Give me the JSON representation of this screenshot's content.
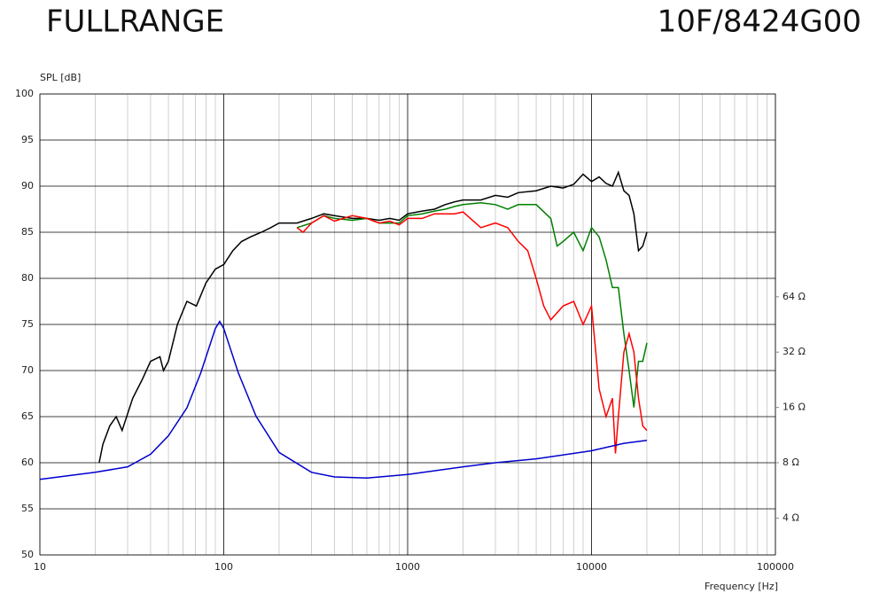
{
  "chart_data": {
    "type": "line",
    "title": "FULLRANGE",
    "subtitle": "10F/8424G00",
    "y_label": "SPL [dB]",
    "x_label": "Frequency [Hz]",
    "xscale": "log",
    "xlim": [
      10,
      100000
    ],
    "xticks": [
      10,
      100,
      1000,
      10000,
      100000
    ],
    "ylim": [
      50,
      100
    ],
    "yticks": [
      50,
      55,
      60,
      65,
      70,
      75,
      80,
      85,
      90,
      95,
      100
    ],
    "y2scale": "log",
    "y2lim": [
      2.52,
      813
    ],
    "y2ticks": [
      {
        "value": 4,
        "label": "4 Ω"
      },
      {
        "value": 8,
        "label": "8 Ω"
      },
      {
        "value": 16,
        "label": "16 Ω"
      },
      {
        "value": 32,
        "label": "32 Ω"
      },
      {
        "value": 64,
        "label": "64 Ω"
      }
    ],
    "grid": true,
    "series": [
      {
        "color": "#000000",
        "x": [
          21,
          22,
          24,
          26,
          28,
          32,
          36,
          40,
          45,
          47,
          50,
          56,
          63,
          71,
          80,
          90,
          100,
          112,
          125,
          140,
          160,
          180,
          200,
          250,
          300,
          350,
          400,
          500,
          600,
          700,
          800,
          900,
          1000,
          1200,
          1400,
          1600,
          1800,
          2000,
          2500,
          3000,
          3500,
          4000,
          5000,
          6000,
          7000,
          8000,
          9000,
          10000,
          11000,
          12000,
          13000,
          14000,
          15000,
          16000,
          17000,
          18000,
          19000,
          20000
        ],
        "values": [
          60,
          62,
          64,
          65,
          63.5,
          67,
          69,
          71,
          71.5,
          70,
          71,
          75,
          77.5,
          77,
          79.5,
          81,
          81.5,
          83,
          84,
          84.5,
          85,
          85.5,
          86,
          86,
          86.5,
          87,
          86.8,
          86.5,
          86.5,
          86.3,
          86.5,
          86.3,
          87,
          87.3,
          87.5,
          88,
          88.3,
          88.5,
          88.5,
          89,
          88.8,
          89.3,
          89.5,
          90,
          89.8,
          90.2,
          91.3,
          90.5,
          91,
          90.3,
          90,
          91.5,
          89.5,
          89,
          87,
          83,
          83.5,
          85
        ]
      },
      {
        "color": "#008000",
        "x": [
          250,
          300,
          350,
          400,
          500,
          600,
          700,
          800,
          900,
          1000,
          1200,
          1400,
          1600,
          1800,
          2000,
          2500,
          3000,
          3500,
          4000,
          5000,
          6000,
          6500,
          7000,
          8000,
          9000,
          10000,
          11000,
          12000,
          13000,
          14000,
          15000,
          16000,
          17000,
          18000,
          19000,
          20000
        ],
        "values": [
          85.5,
          86,
          86.8,
          86.5,
          86.3,
          86.5,
          86,
          86,
          86,
          86.8,
          87,
          87.3,
          87.5,
          87.8,
          88,
          88.2,
          88,
          87.5,
          88,
          88,
          86.5,
          83.5,
          84,
          85,
          83,
          85.5,
          84.5,
          82,
          79,
          79,
          74,
          70,
          66,
          71,
          71,
          73
        ]
      },
      {
        "color": "#ff0000",
        "x": [
          250,
          270,
          300,
          350,
          400,
          500,
          600,
          700,
          800,
          900,
          1000,
          1200,
          1400,
          1600,
          1800,
          2000,
          2500,
          3000,
          3500,
          4000,
          4500,
          5000,
          5500,
          6000,
          7000,
          8000,
          9000,
          10000,
          11000,
          12000,
          13000,
          13500,
          14000,
          15000,
          16000,
          17000,
          18000,
          19000,
          20000
        ],
        "values": [
          85.5,
          85,
          86,
          86.8,
          86.2,
          86.8,
          86.5,
          86,
          86.2,
          85.8,
          86.5,
          86.5,
          87,
          87,
          87,
          87.2,
          85.5,
          86,
          85.5,
          84,
          83,
          80,
          77,
          75.5,
          77,
          77.5,
          75,
          77,
          68,
          65,
          67,
          61,
          65,
          72,
          74,
          72,
          67,
          64,
          63.5
        ]
      },
      {
        "color": "#0000cc",
        "axis": "y2",
        "x": [
          10,
          20,
          30,
          40,
          50,
          63,
          75,
          90,
          95,
          100,
          120,
          150,
          200,
          300,
          400,
          600,
          1000,
          2000,
          3000,
          5000,
          10000,
          15000,
          20000
        ],
        "values": [
          6.5,
          7.1,
          7.6,
          8.9,
          11.2,
          15.9,
          24.7,
          43,
          47,
          43,
          24.7,
          14.3,
          9.1,
          7.1,
          6.7,
          6.6,
          6.9,
          7.6,
          8,
          8.4,
          9.3,
          10.2,
          10.6
        ]
      }
    ]
  }
}
